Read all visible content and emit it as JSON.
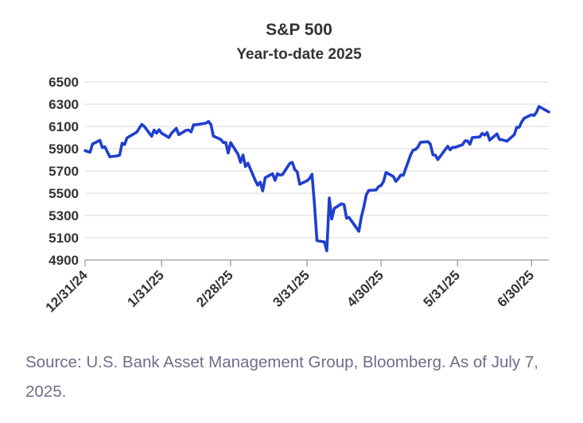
{
  "chart_data": {
    "type": "line",
    "title": "S&P 500",
    "subtitle": "Year-to-date 2025",
    "xlabel": "",
    "ylabel": "",
    "ylim": [
      4900,
      6500
    ],
    "yticks": [
      6500,
      6300,
      6100,
      5900,
      5700,
      5500,
      5300,
      5100,
      4900
    ],
    "xticks": [
      "12/31/24",
      "1/31/25",
      "2/28/25",
      "3/31/25",
      "4/30/25",
      "5/31/25",
      "6/30/25"
    ],
    "xlim": [
      "2024-12-31",
      "2025-07-07"
    ],
    "grid": "horizontal",
    "line_color": "#1f3fcf",
    "series": [
      {
        "x": [
          "2024-12-31",
          "2025-01-02",
          "2025-01-03",
          "2025-01-06",
          "2025-01-07",
          "2025-01-08",
          "2025-01-10",
          "2025-01-13",
          "2025-01-14",
          "2025-01-15",
          "2025-01-16",
          "2025-01-17",
          "2025-01-21",
          "2025-01-22",
          "2025-01-23",
          "2025-01-24",
          "2025-01-27",
          "2025-01-28",
          "2025-01-29",
          "2025-01-30",
          "2025-01-31",
          "2025-02-03",
          "2025-02-04",
          "2025-02-05",
          "2025-02-06",
          "2025-02-07",
          "2025-02-10",
          "2025-02-11",
          "2025-02-12",
          "2025-02-13",
          "2025-02-14",
          "2025-02-18",
          "2025-02-19",
          "2025-02-20",
          "2025-02-21",
          "2025-02-24",
          "2025-02-25",
          "2025-02-26",
          "2025-02-27",
          "2025-02-28",
          "2025-03-03",
          "2025-03-04",
          "2025-03-05",
          "2025-03-06",
          "2025-03-07",
          "2025-03-10",
          "2025-03-11",
          "2025-03-12",
          "2025-03-13",
          "2025-03-14",
          "2025-03-17",
          "2025-03-18",
          "2025-03-19",
          "2025-03-20",
          "2025-03-21",
          "2025-03-24",
          "2025-03-25",
          "2025-03-26",
          "2025-03-27",
          "2025-03-28",
          "2025-03-31",
          "2025-04-01",
          "2025-04-02",
          "2025-04-03",
          "2025-04-04",
          "2025-04-07",
          "2025-04-08",
          "2025-04-09",
          "2025-04-10",
          "2025-04-11",
          "2025-04-14",
          "2025-04-15",
          "2025-04-16",
          "2025-04-17",
          "2025-04-21",
          "2025-04-22",
          "2025-04-23",
          "2025-04-24",
          "2025-04-25",
          "2025-04-28",
          "2025-04-29",
          "2025-04-30",
          "2025-05-01",
          "2025-05-02",
          "2025-05-05",
          "2025-05-06",
          "2025-05-07",
          "2025-05-08",
          "2025-05-09",
          "2025-05-12",
          "2025-05-13",
          "2025-05-14",
          "2025-05-15",
          "2025-05-16",
          "2025-05-19",
          "2025-05-20",
          "2025-05-21",
          "2025-05-22",
          "2025-05-23",
          "2025-05-27",
          "2025-05-28",
          "2025-05-29",
          "2025-05-30",
          "2025-06-02",
          "2025-06-03",
          "2025-06-04",
          "2025-06-05",
          "2025-06-06",
          "2025-06-09",
          "2025-06-10",
          "2025-06-11",
          "2025-06-12",
          "2025-06-13",
          "2025-06-16",
          "2025-06-17",
          "2025-06-18",
          "2025-06-20",
          "2025-06-23",
          "2025-06-24",
          "2025-06-25",
          "2025-06-26",
          "2025-06-27",
          "2025-06-30",
          "2025-07-01",
          "2025-07-02",
          "2025-07-03",
          "2025-07-07"
        ],
        "values": [
          5882,
          5868,
          5942,
          5975,
          5909,
          5918,
          5827,
          5836,
          5842,
          5949,
          5937,
          5997,
          6049,
          6086,
          6118,
          6101,
          6012,
          6067,
          6039,
          6071,
          6040,
          6000,
          6037,
          6061,
          6083,
          6026,
          6066,
          6068,
          6051,
          6115,
          6115,
          6129,
          6144,
          6117,
          6013,
          5983,
          5955,
          5956,
          5861,
          5955,
          5849,
          5778,
          5843,
          5739,
          5770,
          5614,
          5572,
          5599,
          5521,
          5639,
          5675,
          5615,
          5675,
          5663,
          5667,
          5768,
          5777,
          5712,
          5693,
          5581,
          5612,
          5633,
          5671,
          5397,
          5074,
          5062,
          4982,
          5457,
          5268,
          5363,
          5406,
          5397,
          5276,
          5283,
          5158,
          5288,
          5376,
          5485,
          5525,
          5529,
          5560,
          5569,
          5604,
          5687,
          5650,
          5607,
          5631,
          5664,
          5660,
          5844,
          5887,
          5893,
          5917,
          5958,
          5963,
          5941,
          5845,
          5842,
          5802,
          5922,
          5889,
          5912,
          5912,
          5936,
          5970,
          5971,
          5939,
          6000,
          6006,
          6038,
          6022,
          6045,
          5977,
          6033,
          5982,
          5981,
          5967,
          6026,
          6093,
          6092,
          6141,
          6173,
          6205,
          6198,
          6227,
          6279,
          6230
        ]
      }
    ]
  },
  "source_note": "Source: U.S. Bank Asset Management Group, Bloomberg. As of July 7, 2025."
}
